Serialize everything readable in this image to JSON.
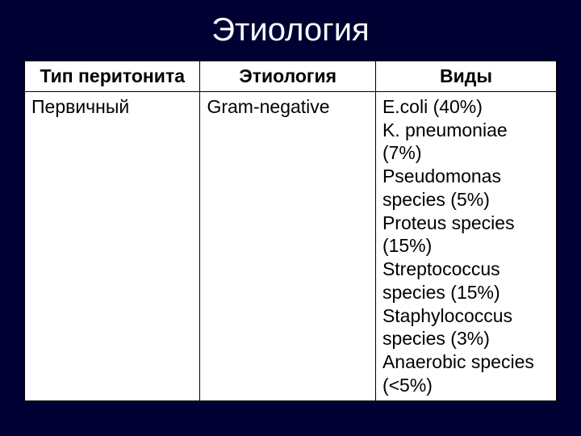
{
  "slide": {
    "title": "Этиология",
    "background_color": "#000033",
    "title_color": "#ffffff",
    "title_fontsize": 40
  },
  "table": {
    "border_color": "#000000",
    "cell_bg": "#ffffff",
    "font_size": 23,
    "columns": [
      {
        "label": "Тип перитонита",
        "width": "33%"
      },
      {
        "label": "Этиология",
        "width": "33%"
      },
      {
        "label": "Виды",
        "width": "34%"
      }
    ],
    "rows": [
      {
        "type": "Первичный",
        "etiology": "Gram-negative",
        "species": "E.coli (40%)\nK. pneumoniae (7%)\nPseudomonas species (5%)\nProteus species (15%)\nStreptococcus species (15%)\nStaphylococcus species (3%)\nAnaerobic species (<5%)"
      }
    ]
  }
}
